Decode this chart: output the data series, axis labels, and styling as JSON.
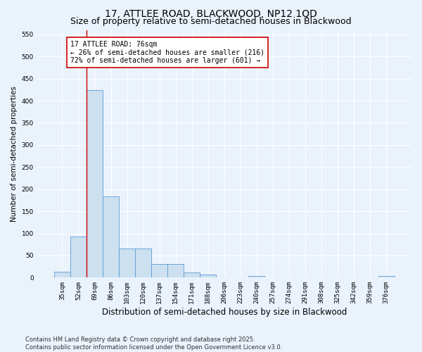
{
  "title1": "17, ATTLEE ROAD, BLACKWOOD, NP12 1QD",
  "title2": "Size of property relative to semi-detached houses in Blackwood",
  "xlabel": "Distribution of semi-detached houses by size in Blackwood",
  "ylabel": "Number of semi-detached properties",
  "categories": [
    "35sqm",
    "52sqm",
    "69sqm",
    "86sqm",
    "103sqm",
    "120sqm",
    "137sqm",
    "154sqm",
    "171sqm",
    "188sqm",
    "206sqm",
    "223sqm",
    "240sqm",
    "257sqm",
    "274sqm",
    "291sqm",
    "308sqm",
    "325sqm",
    "342sqm",
    "359sqm",
    "376sqm"
  ],
  "values": [
    14,
    93,
    424,
    183,
    65,
    65,
    30,
    30,
    12,
    7,
    0,
    0,
    4,
    0,
    0,
    0,
    0,
    0,
    0,
    0,
    4
  ],
  "bar_color": "#cce0f0",
  "bar_edge_color": "#5b9bd5",
  "vline_x": 2.0,
  "vline_color": "#cc0000",
  "annotation_text": "17 ATTLEE ROAD: 76sqm\n← 26% of semi-detached houses are smaller (216)\n72% of semi-detached houses are larger (601) →",
  "annotation_box_color": "#ffffff",
  "annotation_box_edge": "#cc0000",
  "ylim": [
    0,
    560
  ],
  "yticks": [
    0,
    50,
    100,
    150,
    200,
    250,
    300,
    350,
    400,
    450,
    500,
    550
  ],
  "footnote": "Contains HM Land Registry data © Crown copyright and database right 2025.\nContains public sector information licensed under the Open Government Licence v3.0.",
  "bg_color": "#eaf2fb",
  "plot_bg_color": "#eaf2fb",
  "grid_color": "#ffffff",
  "title1_fontsize": 10,
  "title2_fontsize": 9,
  "xlabel_fontsize": 8.5,
  "ylabel_fontsize": 7.5,
  "tick_fontsize": 6.5,
  "annot_fontsize": 7,
  "footnote_fontsize": 6
}
